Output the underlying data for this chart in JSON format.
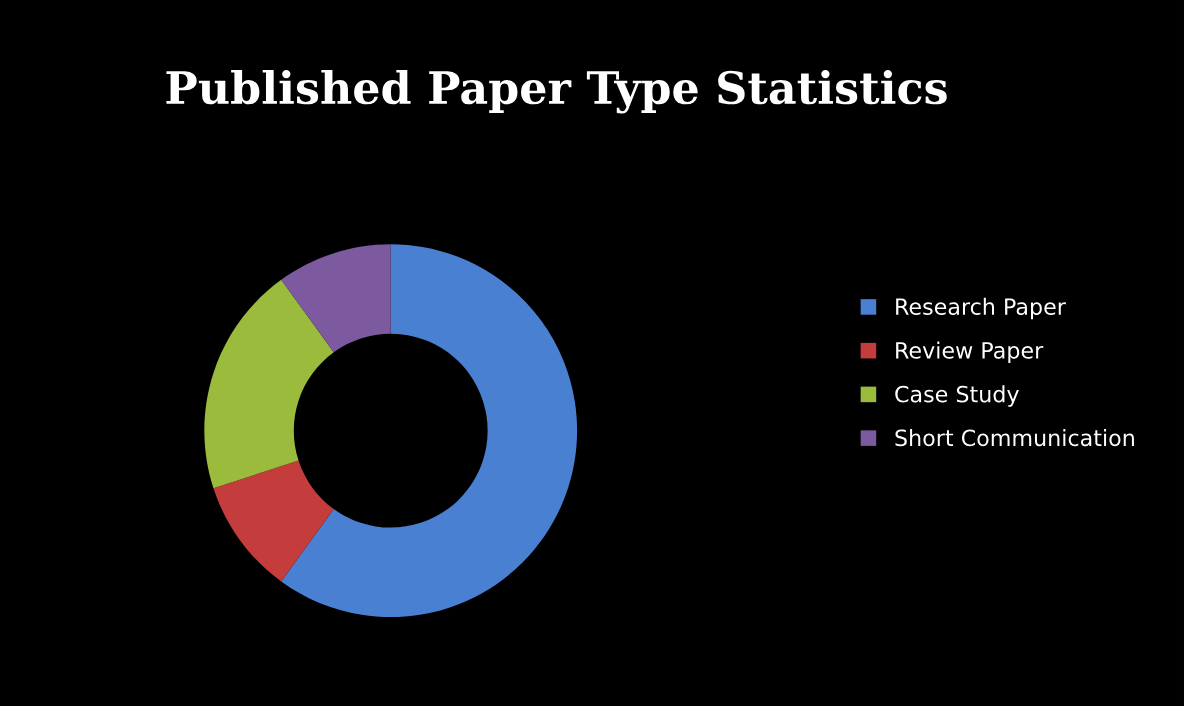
{
  "chart_data": {
    "type": "donut",
    "title": "Published Paper Type Statistics",
    "categories": [
      "Research Paper",
      "Review Paper",
      "Case Study",
      "Short Communication"
    ],
    "values": [
      60,
      10,
      20,
      10
    ],
    "colors": [
      "#4a80d2",
      "#c43c3c",
      "#9bbb3c",
      "#7d5aa0"
    ],
    "legend": "right"
  }
}
